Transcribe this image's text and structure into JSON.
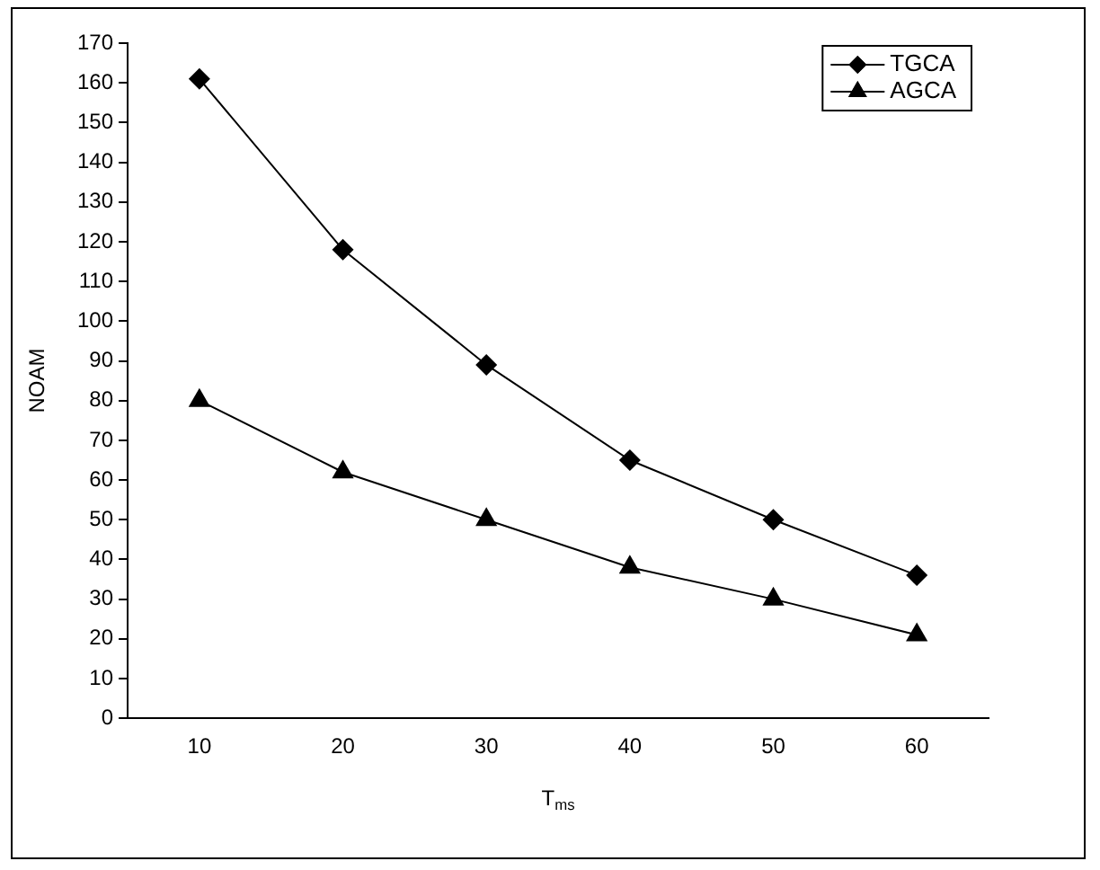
{
  "chart_data": {
    "type": "line",
    "xlabel": "T$_{ms}$",
    "ylabel": "NOAM",
    "categories": [
      "10",
      "20",
      "30",
      "40",
      "50",
      "60"
    ],
    "series": [
      {
        "name": "TGCA",
        "color": "#000000",
        "marker": "diamond",
        "values": [
          161,
          118,
          89,
          65,
          50,
          36
        ]
      },
      {
        "name": "AGCA",
        "color": "#000000",
        "marker": "triangle",
        "values": [
          80,
          62,
          50,
          38,
          30,
          21
        ]
      }
    ],
    "ylim": [
      0,
      170
    ],
    "yticks": [
      0,
      10,
      20,
      30,
      40,
      50,
      60,
      70,
      80,
      90,
      100,
      110,
      120,
      130,
      140,
      150,
      160,
      170
    ],
    "grid": false,
    "legend": "top right",
    "line_style": "solid"
  }
}
